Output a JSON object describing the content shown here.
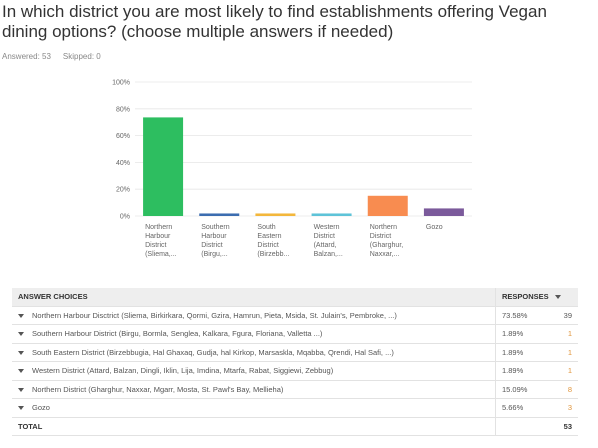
{
  "question": "In which district you are most likely to find establishments offering Vegan dining options? (choose multiple answers if needed)",
  "answered": "Answered: 53",
  "skipped": "Skipped: 0",
  "chart_data": {
    "type": "bar",
    "categories": [
      "Northern Harbour District (Sliema,...",
      "Southern Harbour District (Birgu,...",
      "South Eastern District (Birzebb...",
      "Western District (Attard, Balzan,...",
      "Northern District (Gharghur, Naxxar,...",
      "Gozo"
    ],
    "values": [
      73.58,
      1.89,
      1.89,
      1.89,
      15.09,
      5.66
    ],
    "colors": [
      "#2dbe60",
      "#3c6db0",
      "#f3b73b",
      "#5ec3d8",
      "#f88c50",
      "#7b5a9b"
    ],
    "ylim": [
      0,
      100
    ],
    "yticks": [
      {
        "value": 0,
        "label": "0%"
      },
      {
        "value": 20,
        "label": "20%"
      },
      {
        "value": 40,
        "label": "40%"
      },
      {
        "value": 60,
        "label": "60%"
      },
      {
        "value": 80,
        "label": "80%"
      },
      {
        "value": 100,
        "label": "100%"
      }
    ],
    "grid": true
  },
  "table": {
    "headers": [
      "ANSWER CHOICES",
      "RESPONSES"
    ],
    "rows": [
      [
        "Northern Harbour Disctrict (Sliema, Birkirkara, Qormi, Gzira, Hamrun, Pieta, Msida, St. Julain's, Pembroke, ...)",
        "73.58%",
        "39"
      ],
      [
        "Southern Harbour District (Birgu, Bormla, Senglea, Kalkara, Fgura, Floriana, Valletta ...)",
        "1.89%",
        "1"
      ],
      [
        "South Eastern District (Birzebbugia, Hal Ghaxaq, Gudja, hal Kirkop, Marsaskla, Mqabba, Qrendi, Hal Safi, ...)",
        "1.89%",
        "1"
      ],
      [
        "Western District (Attard, Balzan, Dingli, Iklin, Lija, Imdina, Mtarfa, Rabat, Siggiewi, Zebbug)",
        "1.89%",
        "1"
      ],
      [
        "Northern District (Gharghur, Naxxar, Mgarr, Mosta, St. Pawl's Bay, Mellieha)",
        "15.09%",
        "8"
      ],
      [
        "Gozo",
        "5.66%",
        "3"
      ]
    ],
    "total": [
      "TOTAL",
      "53"
    ]
  }
}
